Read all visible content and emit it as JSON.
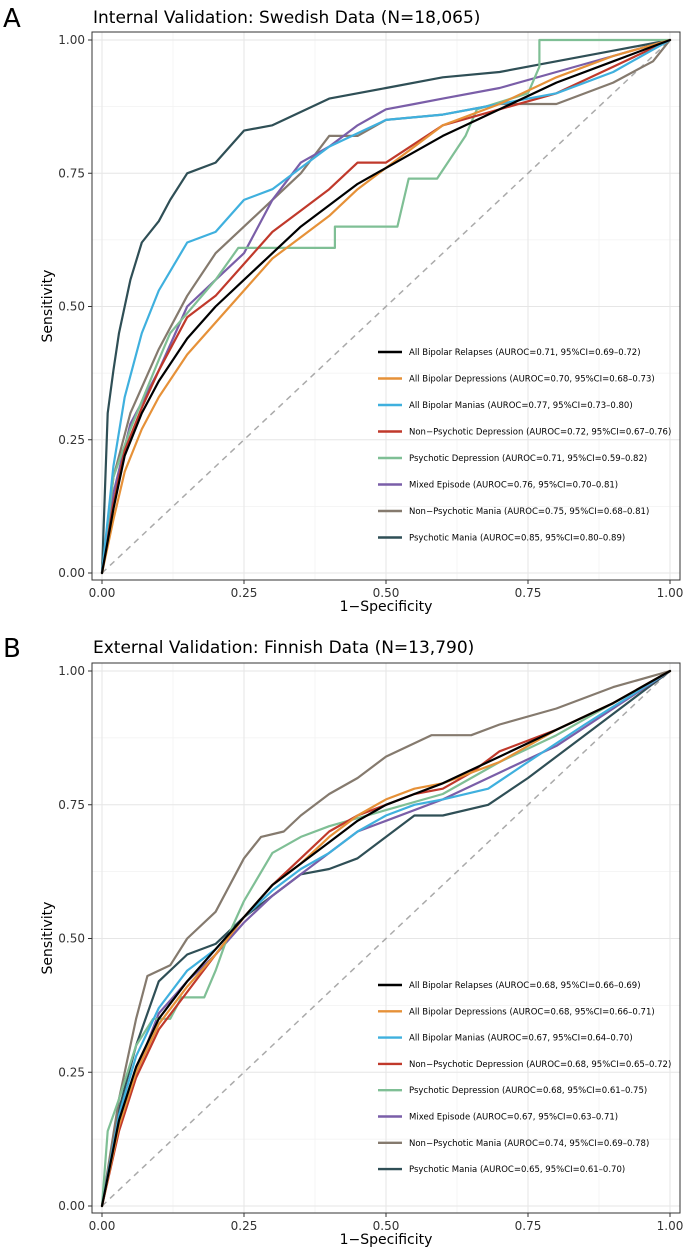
{
  "chart_data": [
    {
      "type": "line",
      "panel_label": "A",
      "title": "Internal Validation: Swedish Data (N=18,065)",
      "xlabel": "1−Specificity",
      "ylabel": "Sensitivity",
      "xlim": [
        0,
        1
      ],
      "ylim": [
        0,
        1
      ],
      "x_ticks": [
        "0.00",
        "0.25",
        "0.50",
        "0.75",
        "1.00"
      ],
      "y_ticks": [
        "0.00",
        "0.25",
        "0.50",
        "0.75",
        "1.00"
      ],
      "legend_position": "bottom-right",
      "reference_line": "diagonal",
      "series": [
        {
          "name": "All Bipolar Relapses",
          "stat": "(AUROC=0.71, 95%CI=0.69–0.72)",
          "color": "#000000",
          "x": [
            0,
            0.02,
            0.04,
            0.07,
            0.1,
            0.15,
            0.2,
            0.25,
            0.3,
            0.35,
            0.4,
            0.45,
            0.5,
            0.6,
            0.7,
            0.8,
            0.9,
            1.0
          ],
          "y": [
            0,
            0.12,
            0.22,
            0.3,
            0.36,
            0.44,
            0.5,
            0.55,
            0.6,
            0.65,
            0.69,
            0.73,
            0.76,
            0.82,
            0.87,
            0.92,
            0.96,
            1.0
          ]
        },
        {
          "name": "All Bipolar Depressions",
          "stat": "(AUROC=0.70, 95%CI=0.68–0.73)",
          "color": "#e69138",
          "x": [
            0,
            0.02,
            0.04,
            0.07,
            0.1,
            0.15,
            0.2,
            0.25,
            0.3,
            0.35,
            0.4,
            0.45,
            0.5,
            0.6,
            0.7,
            0.8,
            0.9,
            1.0
          ],
          "y": [
            0,
            0.1,
            0.19,
            0.27,
            0.33,
            0.41,
            0.47,
            0.53,
            0.59,
            0.63,
            0.67,
            0.72,
            0.76,
            0.84,
            0.88,
            0.93,
            0.97,
            1.0
          ]
        },
        {
          "name": "All Bipolar Manias",
          "stat": "(AUROC=0.77, 95%CI=0.73–0.80)",
          "color": "#3fb0de",
          "x": [
            0,
            0.02,
            0.04,
            0.07,
            0.1,
            0.15,
            0.2,
            0.25,
            0.3,
            0.35,
            0.4,
            0.5,
            0.6,
            0.7,
            0.8,
            0.9,
            1.0
          ],
          "y": [
            0,
            0.2,
            0.33,
            0.45,
            0.53,
            0.62,
            0.64,
            0.7,
            0.72,
            0.76,
            0.8,
            0.85,
            0.86,
            0.88,
            0.9,
            0.94,
            1.0
          ]
        },
        {
          "name": "Non−Psychotic Depression",
          "stat": "(AUROC=0.72, 95%CI=0.67–0.76)",
          "color": "#c0392b",
          "x": [
            0,
            0.02,
            0.04,
            0.07,
            0.1,
            0.15,
            0.2,
            0.25,
            0.3,
            0.35,
            0.4,
            0.45,
            0.5,
            0.6,
            0.7,
            0.8,
            0.9,
            1.0
          ],
          "y": [
            0,
            0.13,
            0.23,
            0.31,
            0.38,
            0.48,
            0.52,
            0.58,
            0.64,
            0.68,
            0.72,
            0.77,
            0.77,
            0.84,
            0.87,
            0.9,
            0.95,
            1.0
          ]
        },
        {
          "name": "Psychotic Depression",
          "stat": "(AUROC=0.71, 95%CI=0.59–0.82)",
          "color": "#7fbf95",
          "x": [
            0,
            0.02,
            0.05,
            0.1,
            0.12,
            0.2,
            0.24,
            0.32,
            0.41,
            0.41,
            0.52,
            0.54,
            0.59,
            0.64,
            0.66,
            0.75,
            0.77,
            0.77,
            1.0
          ],
          "y": [
            0,
            0.18,
            0.27,
            0.4,
            0.45,
            0.55,
            0.61,
            0.61,
            0.61,
            0.65,
            0.65,
            0.74,
            0.74,
            0.82,
            0.87,
            0.9,
            0.95,
            1.0,
            1.0
          ]
        },
        {
          "name": "Mixed Episode",
          "stat": "(AUROC=0.76, 95%CI=0.70–0.81)",
          "color": "#7a5ea8",
          "x": [
            0,
            0.02,
            0.05,
            0.1,
            0.15,
            0.2,
            0.25,
            0.3,
            0.35,
            0.4,
            0.45,
            0.5,
            0.55,
            0.6,
            0.7,
            0.8,
            0.9,
            1.0
          ],
          "y": [
            0,
            0.15,
            0.28,
            0.38,
            0.5,
            0.55,
            0.6,
            0.7,
            0.77,
            0.8,
            0.84,
            0.87,
            0.88,
            0.89,
            0.91,
            0.94,
            0.97,
            1.0
          ]
        },
        {
          "name": "Non−Psychotic Mania",
          "stat": "(AUROC=0.75, 95%CI=0.68–0.81)",
          "color": "#857a6e",
          "x": [
            0,
            0.02,
            0.05,
            0.1,
            0.15,
            0.2,
            0.25,
            0.3,
            0.35,
            0.4,
            0.45,
            0.5,
            0.6,
            0.7,
            0.8,
            0.9,
            0.97,
            1.0
          ],
          "y": [
            0,
            0.18,
            0.3,
            0.42,
            0.52,
            0.6,
            0.65,
            0.7,
            0.75,
            0.82,
            0.82,
            0.85,
            0.86,
            0.88,
            0.88,
            0.92,
            0.96,
            1.0
          ]
        },
        {
          "name": "Psychotic Mania",
          "stat": "(AUROC=0.85, 95%CI=0.80–0.89)",
          "color": "#2f4f56",
          "x": [
            0,
            0.01,
            0.02,
            0.03,
            0.05,
            0.07,
            0.1,
            0.12,
            0.15,
            0.2,
            0.25,
            0.3,
            0.4,
            0.5,
            0.6,
            0.7,
            0.8,
            0.9,
            1.0
          ],
          "y": [
            0,
            0.3,
            0.38,
            0.45,
            0.55,
            0.62,
            0.66,
            0.7,
            0.75,
            0.77,
            0.83,
            0.84,
            0.89,
            0.91,
            0.93,
            0.94,
            0.96,
            0.98,
            1.0
          ]
        }
      ]
    },
    {
      "type": "line",
      "panel_label": "B",
      "title": "External Validation: Finnish Data (N=13,790)",
      "xlabel": "1−Specificity",
      "ylabel": "Sensitivity",
      "xlim": [
        0,
        1
      ],
      "ylim": [
        0,
        1
      ],
      "x_ticks": [
        "0.00",
        "0.25",
        "0.50",
        "0.75",
        "1.00"
      ],
      "y_ticks": [
        "0.00",
        "0.25",
        "0.50",
        "0.75",
        "1.00"
      ],
      "legend_position": "bottom-right",
      "reference_line": "diagonal",
      "series": [
        {
          "name": "All Bipolar Relapses",
          "stat": "(AUROC=0.68, 95%CI=0.66–0.69)",
          "color": "#000000",
          "x": [
            0,
            0.03,
            0.06,
            0.1,
            0.15,
            0.2,
            0.25,
            0.3,
            0.35,
            0.4,
            0.45,
            0.5,
            0.55,
            0.6,
            0.7,
            0.8,
            0.9,
            1.0
          ],
          "y": [
            0,
            0.16,
            0.26,
            0.35,
            0.42,
            0.48,
            0.54,
            0.6,
            0.64,
            0.68,
            0.72,
            0.75,
            0.77,
            0.79,
            0.84,
            0.89,
            0.94,
            1.0
          ]
        },
        {
          "name": "All Bipolar Depressions",
          "stat": "(AUROC=0.68, 95%CI=0.66–0.71)",
          "color": "#e69138",
          "x": [
            0,
            0.03,
            0.06,
            0.1,
            0.15,
            0.2,
            0.25,
            0.3,
            0.35,
            0.4,
            0.45,
            0.5,
            0.55,
            0.6,
            0.7,
            0.8,
            0.9,
            1.0
          ],
          "y": [
            0,
            0.15,
            0.25,
            0.34,
            0.41,
            0.47,
            0.54,
            0.6,
            0.64,
            0.69,
            0.73,
            0.76,
            0.78,
            0.79,
            0.83,
            0.89,
            0.94,
            1.0
          ]
        },
        {
          "name": "All Bipolar Manias",
          "stat": "(AUROC=0.67, 95%CI=0.64–0.70)",
          "color": "#3fb0de",
          "x": [
            0,
            0.03,
            0.06,
            0.1,
            0.15,
            0.2,
            0.25,
            0.3,
            0.35,
            0.4,
            0.45,
            0.5,
            0.55,
            0.6,
            0.68,
            0.75,
            0.85,
            1.0
          ],
          "y": [
            0,
            0.17,
            0.28,
            0.37,
            0.44,
            0.48,
            0.54,
            0.59,
            0.63,
            0.66,
            0.7,
            0.73,
            0.75,
            0.76,
            0.78,
            0.83,
            0.9,
            1.0
          ]
        },
        {
          "name": "Non−Psychotic Depression",
          "stat": "(AUROC=0.68, 95%CI=0.65–0.72)",
          "color": "#c0392b",
          "x": [
            0,
            0.03,
            0.06,
            0.1,
            0.15,
            0.2,
            0.25,
            0.3,
            0.35,
            0.4,
            0.45,
            0.5,
            0.55,
            0.6,
            0.65,
            0.7,
            0.8,
            0.9,
            1.0
          ],
          "y": [
            0,
            0.14,
            0.24,
            0.33,
            0.4,
            0.47,
            0.54,
            0.6,
            0.65,
            0.7,
            0.73,
            0.75,
            0.77,
            0.78,
            0.81,
            0.85,
            0.89,
            0.94,
            1.0
          ]
        },
        {
          "name": "Psychotic Depression",
          "stat": "(AUROC=0.68, 95%CI=0.61–0.75)",
          "color": "#7fbf95",
          "x": [
            0,
            0.01,
            0.03,
            0.06,
            0.09,
            0.12,
            0.14,
            0.18,
            0.2,
            0.22,
            0.25,
            0.3,
            0.35,
            0.4,
            0.5,
            0.6,
            0.7,
            0.8,
            0.9,
            1.0
          ],
          "y": [
            0,
            0.14,
            0.2,
            0.3,
            0.35,
            0.35,
            0.39,
            0.39,
            0.44,
            0.5,
            0.57,
            0.66,
            0.69,
            0.71,
            0.74,
            0.77,
            0.83,
            0.88,
            0.94,
            1.0
          ]
        },
        {
          "name": "Mixed Episode",
          "stat": "(AUROC=0.67, 95%CI=0.63–0.71)",
          "color": "#7a5ea8",
          "x": [
            0,
            0.03,
            0.06,
            0.1,
            0.15,
            0.2,
            0.25,
            0.3,
            0.35,
            0.4,
            0.45,
            0.5,
            0.6,
            0.7,
            0.8,
            0.9,
            1.0
          ],
          "y": [
            0,
            0.15,
            0.25,
            0.36,
            0.42,
            0.47,
            0.53,
            0.58,
            0.62,
            0.66,
            0.7,
            0.72,
            0.76,
            0.81,
            0.86,
            0.93,
            1.0
          ]
        },
        {
          "name": "Non−Psychotic Mania",
          "stat": "(AUROC=0.74, 95%CI=0.69–0.78)",
          "color": "#857a6e",
          "x": [
            0,
            0.03,
            0.06,
            0.08,
            0.12,
            0.15,
            0.2,
            0.25,
            0.28,
            0.32,
            0.35,
            0.4,
            0.45,
            0.5,
            0.58,
            0.65,
            0.7,
            0.8,
            0.9,
            1.0
          ],
          "y": [
            0,
            0.2,
            0.35,
            0.43,
            0.45,
            0.5,
            0.55,
            0.65,
            0.69,
            0.7,
            0.73,
            0.77,
            0.8,
            0.84,
            0.88,
            0.88,
            0.9,
            0.93,
            0.97,
            1.0
          ]
        },
        {
          "name": "Psychotic Mania",
          "stat": "(AUROC=0.65, 95%CI=0.61–0.70)",
          "color": "#2f4f56",
          "x": [
            0,
            0.03,
            0.06,
            0.1,
            0.15,
            0.2,
            0.25,
            0.3,
            0.35,
            0.4,
            0.45,
            0.5,
            0.55,
            0.6,
            0.68,
            0.75,
            0.85,
            1.0
          ],
          "y": [
            0,
            0.18,
            0.3,
            0.42,
            0.47,
            0.49,
            0.54,
            0.58,
            0.62,
            0.63,
            0.65,
            0.69,
            0.73,
            0.73,
            0.75,
            0.8,
            0.88,
            1.0
          ]
        }
      ]
    }
  ]
}
